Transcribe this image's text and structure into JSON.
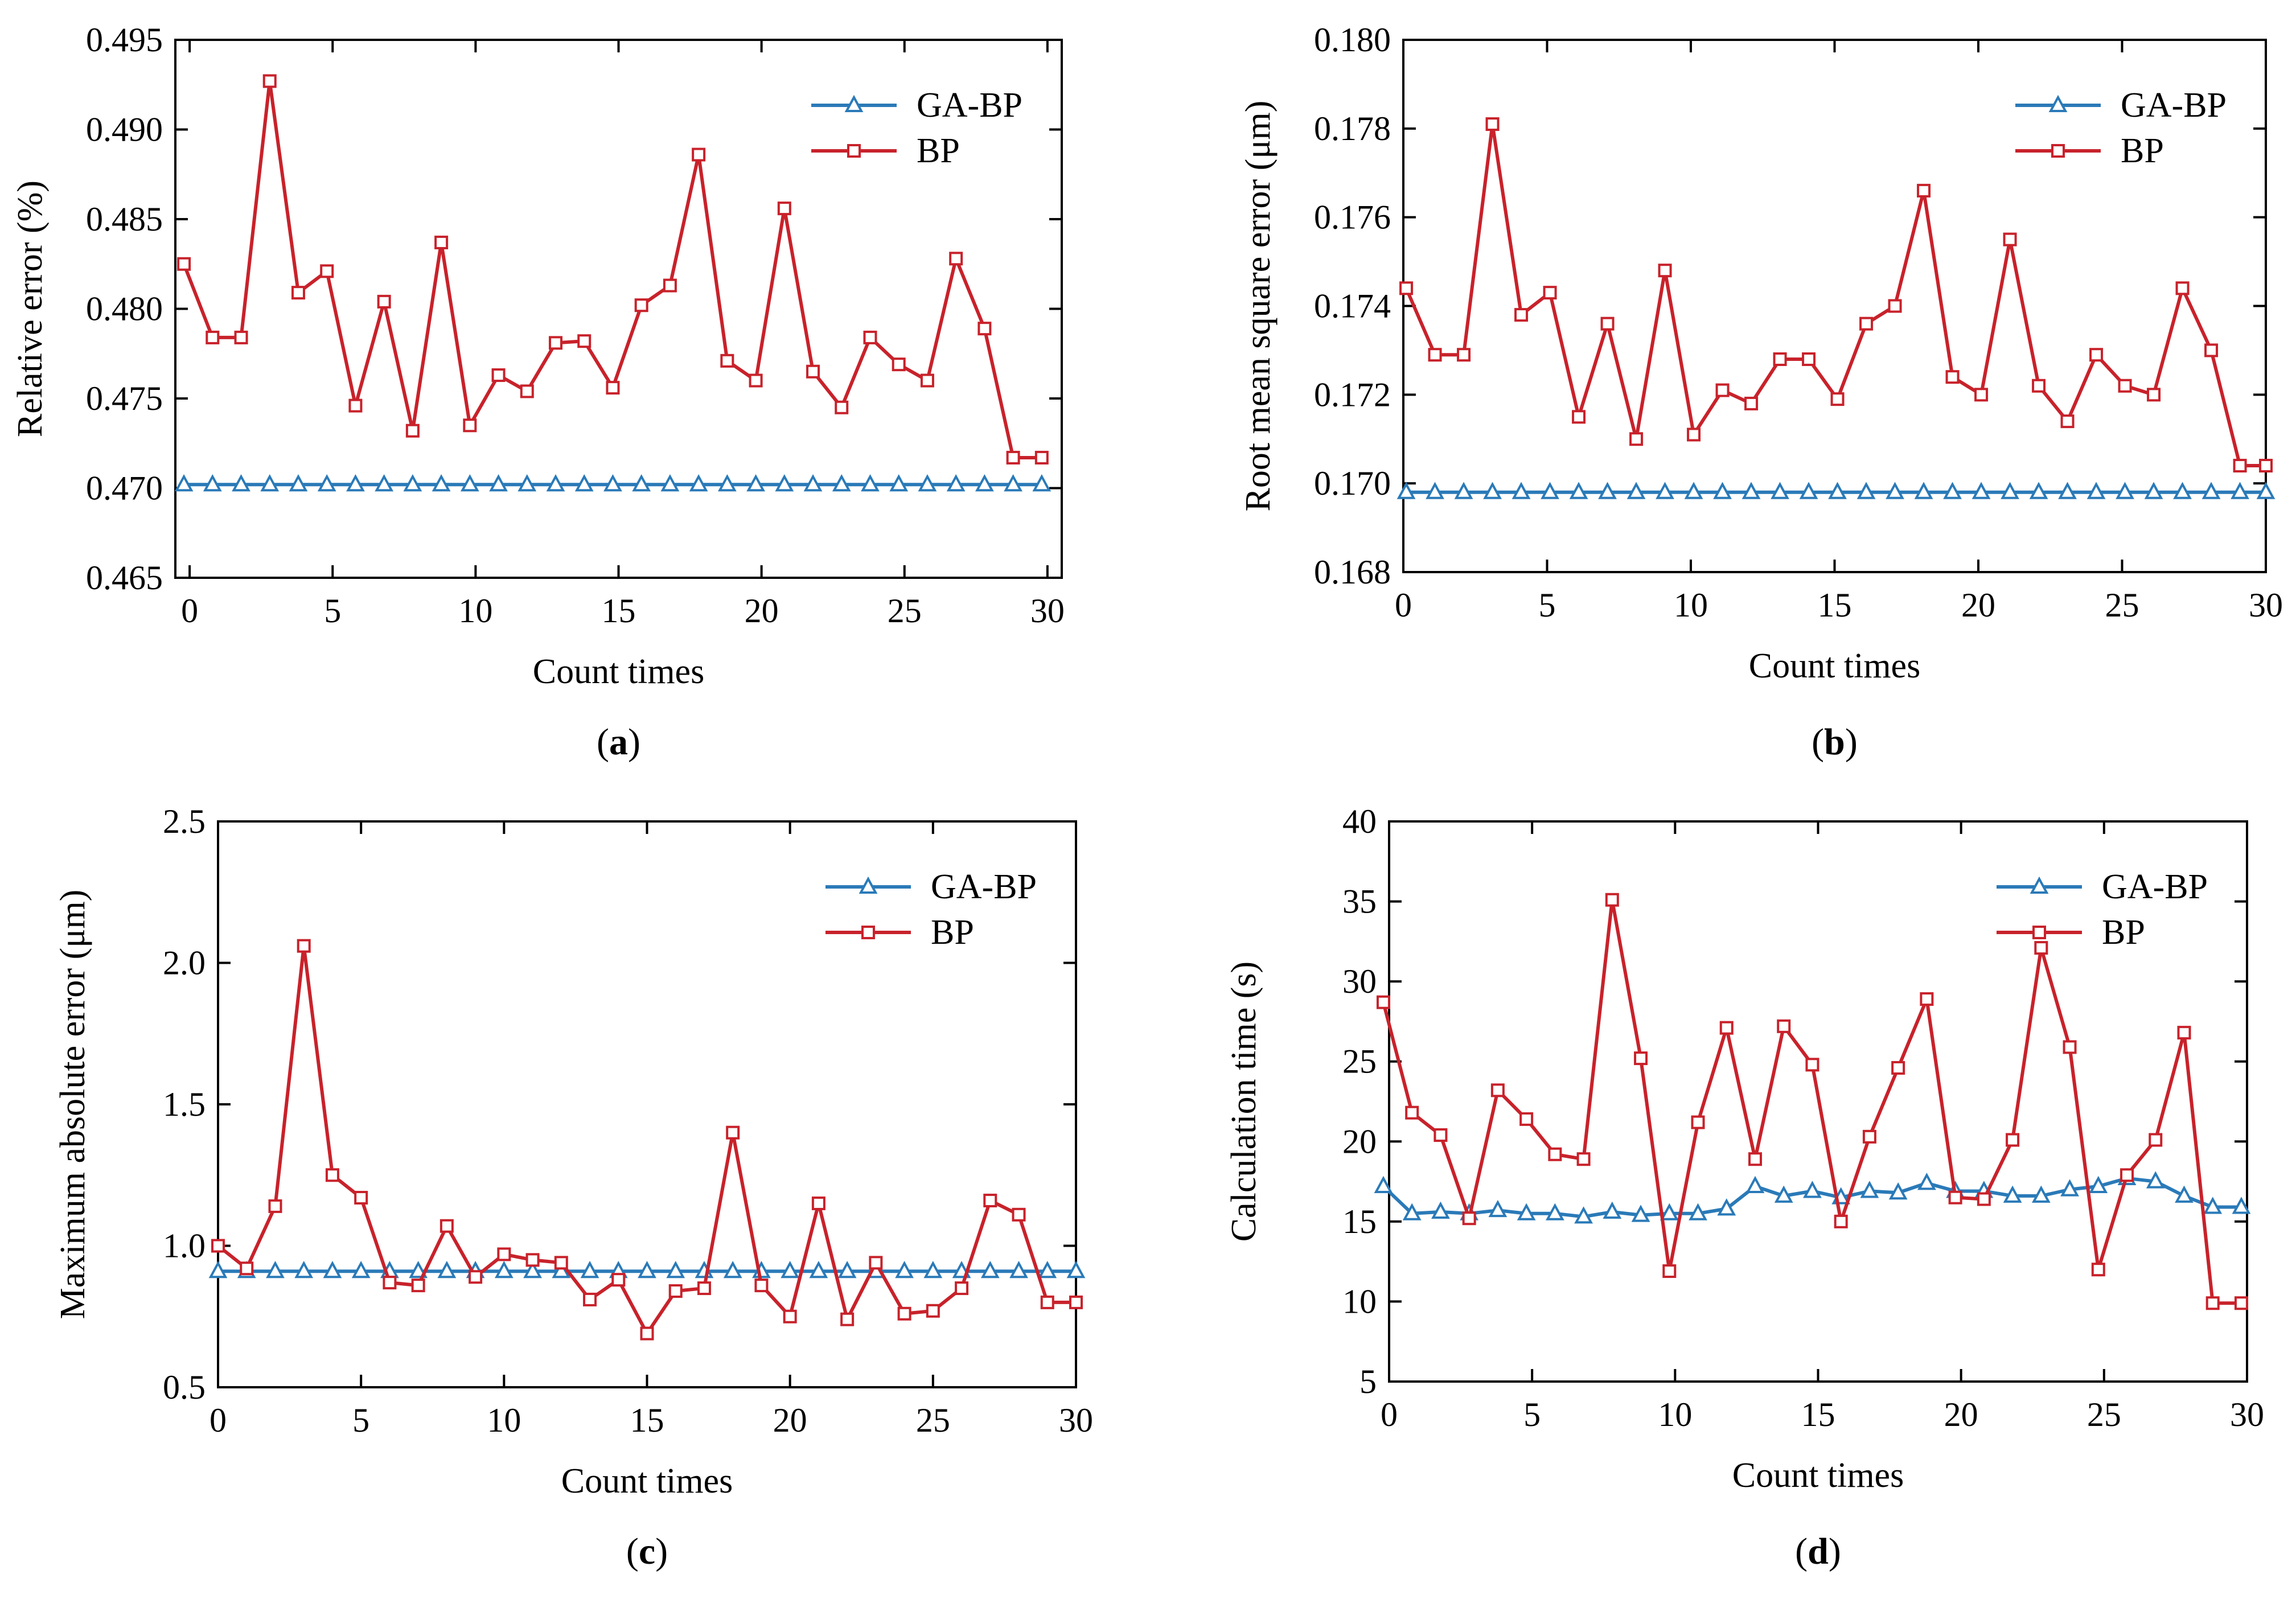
{
  "colors": {
    "ga_bp": "#2a7ab8",
    "bp": "#c8222b",
    "axis": "#000000"
  },
  "chart_data": [
    {
      "id": "a",
      "type": "line",
      "panel_label": "a",
      "xlabel": "Count times",
      "ylabel": "Relative error (%)",
      "xlim": [
        -0.5,
        30.5
      ],
      "ylim": [
        0.465,
        0.495
      ],
      "xticks": [
        0,
        5,
        10,
        15,
        20,
        25,
        30
      ],
      "yticks": [
        0.465,
        0.47,
        0.475,
        0.48,
        0.485,
        0.49,
        0.495
      ],
      "ytick_labels": [
        "0.465",
        "0.470",
        "0.475",
        "0.480",
        "0.485",
        "0.490",
        "0.495"
      ],
      "legend": {
        "position": "top-right",
        "entries": [
          "GA-BP",
          "BP"
        ]
      },
      "series": [
        {
          "name": "GA-BP",
          "marker": "triangle",
          "x": [
            -0.2,
            0.8,
            1.8,
            2.8,
            3.8,
            4.8,
            5.8,
            6.8,
            7.8,
            8.8,
            9.8,
            10.8,
            11.8,
            12.8,
            13.8,
            14.8,
            15.8,
            16.8,
            17.8,
            18.8,
            19.8,
            20.8,
            21.8,
            22.8,
            23.8,
            24.8,
            25.8,
            26.8,
            27.8,
            28.8,
            29.8
          ],
          "values": [
            0.4702,
            0.4702,
            0.4702,
            0.4702,
            0.4702,
            0.4702,
            0.4702,
            0.4702,
            0.4702,
            0.4702,
            0.4702,
            0.4702,
            0.4702,
            0.4702,
            0.4702,
            0.4702,
            0.4702,
            0.4702,
            0.4702,
            0.4702,
            0.4702,
            0.4702,
            0.4702,
            0.4702,
            0.4702,
            0.4702,
            0.4702,
            0.4702,
            0.4702,
            0.4702,
            0.4702
          ]
        },
        {
          "name": "BP",
          "marker": "square",
          "x": [
            -0.2,
            0.8,
            1.8,
            2.8,
            3.8,
            4.8,
            5.8,
            6.8,
            7.8,
            8.8,
            9.8,
            10.8,
            11.8,
            12.8,
            13.8,
            14.8,
            15.8,
            16.8,
            17.8,
            18.8,
            19.8,
            20.8,
            21.8,
            22.8,
            23.8,
            24.8,
            25.8,
            26.8,
            27.8,
            28.8,
            29.8
          ],
          "values": [
            0.4825,
            0.4784,
            0.4784,
            0.4927,
            0.4809,
            0.4821,
            0.4746,
            0.4804,
            0.4732,
            0.4837,
            0.4735,
            0.4763,
            0.4754,
            0.4781,
            0.4782,
            0.4756,
            0.4802,
            0.4813,
            0.4886,
            0.4771,
            0.476,
            0.4856,
            0.4765,
            0.4745,
            0.4784,
            0.4769,
            0.476,
            0.4828,
            0.4789,
            0.4717,
            0.4717
          ]
        }
      ]
    },
    {
      "id": "b",
      "type": "line",
      "panel_label": "b",
      "xlabel": "Count times",
      "ylabel": "Root mean square error (μm)",
      "xlim": [
        0,
        30
      ],
      "ylim": [
        0.168,
        0.18
      ],
      "xticks": [
        0,
        5,
        10,
        15,
        20,
        25,
        30
      ],
      "yticks": [
        0.168,
        0.17,
        0.172,
        0.174,
        0.176,
        0.178,
        0.18
      ],
      "ytick_labels": [
        "0.168",
        "0.170",
        "0.172",
        "0.174",
        "0.176",
        "0.178",
        "0.180"
      ],
      "legend": {
        "position": "top-right",
        "entries": [
          "GA-BP",
          "BP"
        ]
      },
      "series": [
        {
          "name": "GA-BP",
          "marker": "triangle",
          "x": [
            0.1,
            1.1,
            2.1,
            3.1,
            4.1,
            5.1,
            6.1,
            7.1,
            8.1,
            9.1,
            10.1,
            11.1,
            12.1,
            13.1,
            14.1,
            15.1,
            16.1,
            17.1,
            18.1,
            19.1,
            20.1,
            21.1,
            22.1,
            23.1,
            24.1,
            25.1,
            26.1,
            27.1,
            28.1,
            29.1,
            30.0
          ],
          "values": [
            0.1698,
            0.1698,
            0.1698,
            0.1698,
            0.1698,
            0.1698,
            0.1698,
            0.1698,
            0.1698,
            0.1698,
            0.1698,
            0.1698,
            0.1698,
            0.1698,
            0.1698,
            0.1698,
            0.1698,
            0.1698,
            0.1698,
            0.1698,
            0.1698,
            0.1698,
            0.1698,
            0.1698,
            0.1698,
            0.1698,
            0.1698,
            0.1698,
            0.1698,
            0.1698,
            0.1698
          ]
        },
        {
          "name": "BP",
          "marker": "square",
          "x": [
            0.1,
            1.1,
            2.1,
            3.1,
            4.1,
            5.1,
            6.1,
            7.1,
            8.1,
            9.1,
            10.1,
            11.1,
            12.1,
            13.1,
            14.1,
            15.1,
            16.1,
            17.1,
            18.1,
            19.1,
            20.1,
            21.1,
            22.1,
            23.1,
            24.1,
            25.1,
            26.1,
            27.1,
            28.1,
            29.1,
            30.0
          ],
          "values": [
            0.1744,
            0.1729,
            0.1729,
            0.1781,
            0.1738,
            0.1743,
            0.1715,
            0.1736,
            0.171,
            0.1748,
            0.1711,
            0.1721,
            0.1718,
            0.1728,
            0.1728,
            0.1719,
            0.1736,
            0.174,
            0.1766,
            0.1724,
            0.172,
            0.1755,
            0.1722,
            0.1714,
            0.1729,
            0.1722,
            0.172,
            0.1744,
            0.173,
            0.1704,
            0.1704
          ]
        }
      ]
    },
    {
      "id": "c",
      "type": "line",
      "panel_label": "c",
      "xlabel": "Count times",
      "ylabel": "Maximum absolute error (μm)",
      "xlim": [
        0,
        30
      ],
      "ylim": [
        0.5,
        2.5
      ],
      "xticks": [
        0,
        5,
        10,
        15,
        20,
        25,
        30
      ],
      "yticks": [
        0.5,
        1.0,
        1.5,
        2.0,
        2.5
      ],
      "ytick_labels": [
        "0.5",
        "1.0",
        "1.5",
        "2.0",
        "2.5"
      ],
      "legend": {
        "position": "top-right",
        "entries": [
          "GA-BP",
          "BP"
        ]
      },
      "series": [
        {
          "name": "GA-BP",
          "marker": "triangle",
          "x": [
            0,
            1,
            2,
            3,
            4,
            5,
            6,
            7,
            8,
            9,
            10,
            11,
            12,
            13,
            14,
            15,
            16,
            17,
            18,
            19,
            20,
            21,
            22,
            23,
            24,
            25,
            26,
            27,
            28,
            29,
            30
          ],
          "values": [
            0.91,
            0.91,
            0.91,
            0.91,
            0.91,
            0.91,
            0.91,
            0.91,
            0.91,
            0.91,
            0.91,
            0.91,
            0.91,
            0.91,
            0.91,
            0.91,
            0.91,
            0.91,
            0.91,
            0.91,
            0.91,
            0.91,
            0.91,
            0.91,
            0.91,
            0.91,
            0.91,
            0.91,
            0.91,
            0.91,
            0.91
          ]
        },
        {
          "name": "BP",
          "marker": "square",
          "x": [
            0,
            1,
            2,
            3,
            4,
            5,
            6,
            7,
            8,
            9,
            10,
            11,
            12,
            13,
            14,
            15,
            16,
            17,
            18,
            19,
            20,
            21,
            22,
            23,
            24,
            25,
            26,
            27,
            28,
            29,
            30
          ],
          "values": [
            1.0,
            0.92,
            1.14,
            2.06,
            1.25,
            1.17,
            0.87,
            0.86,
            1.07,
            0.89,
            0.97,
            0.95,
            0.94,
            0.81,
            0.88,
            0.69,
            0.84,
            0.85,
            1.4,
            0.86,
            0.75,
            1.15,
            0.74,
            0.94,
            0.76,
            0.77,
            0.85,
            1.16,
            1.11,
            0.8,
            0.8
          ]
        }
      ]
    },
    {
      "id": "d",
      "type": "line",
      "panel_label": "d",
      "xlabel": "Count times",
      "ylabel": "Calculation time (s)",
      "xlim": [
        0,
        30
      ],
      "ylim": [
        5,
        40
      ],
      "xticks": [
        0,
        5,
        10,
        15,
        20,
        25,
        30
      ],
      "yticks": [
        5,
        10,
        15,
        20,
        25,
        30,
        35,
        40
      ],
      "ytick_labels": [
        "5",
        "10",
        "15",
        "20",
        "25",
        "30",
        "35",
        "40"
      ],
      "legend": {
        "position": "top-right",
        "entries": [
          "GA-BP",
          "BP"
        ]
      },
      "series": [
        {
          "name": "GA-BP",
          "marker": "triangle",
          "x": [
            -0.2,
            0.8,
            1.8,
            2.8,
            3.8,
            4.8,
            5.8,
            6.8,
            7.8,
            8.8,
            9.8,
            10.8,
            11.8,
            12.8,
            13.8,
            14.8,
            15.8,
            16.8,
            17.8,
            18.8,
            19.8,
            20.8,
            21.8,
            22.8,
            23.8,
            24.8,
            25.8,
            26.8,
            27.8,
            28.8,
            29.8
          ],
          "values": [
            17.2,
            15.5,
            15.6,
            15.5,
            15.7,
            15.5,
            15.5,
            15.3,
            15.6,
            15.4,
            15.5,
            15.5,
            15.8,
            17.2,
            16.6,
            16.9,
            16.5,
            16.9,
            16.8,
            17.4,
            16.9,
            16.9,
            16.6,
            16.6,
            17.0,
            17.2,
            17.7,
            17.5,
            16.6,
            15.9,
            15.9
          ]
        },
        {
          "name": "BP",
          "marker": "square",
          "x": [
            -0.2,
            0.8,
            1.8,
            2.8,
            3.8,
            4.8,
            5.8,
            6.8,
            7.8,
            8.8,
            9.8,
            10.8,
            11.8,
            12.8,
            13.8,
            14.8,
            15.8,
            16.8,
            17.8,
            18.8,
            19.8,
            20.8,
            21.8,
            22.8,
            23.8,
            24.8,
            25.8,
            26.8,
            27.8,
            28.8,
            29.8
          ],
          "values": [
            28.7,
            21.8,
            20.4,
            15.2,
            23.2,
            21.4,
            19.2,
            18.9,
            35.1,
            25.2,
            11.9,
            21.2,
            27.1,
            18.9,
            27.2,
            24.8,
            15.0,
            20.3,
            24.6,
            28.9,
            16.5,
            16.4,
            20.1,
            32.1,
            25.9,
            12.0,
            17.9,
            20.1,
            26.8,
            9.9,
            9.9
          ]
        }
      ]
    }
  ]
}
